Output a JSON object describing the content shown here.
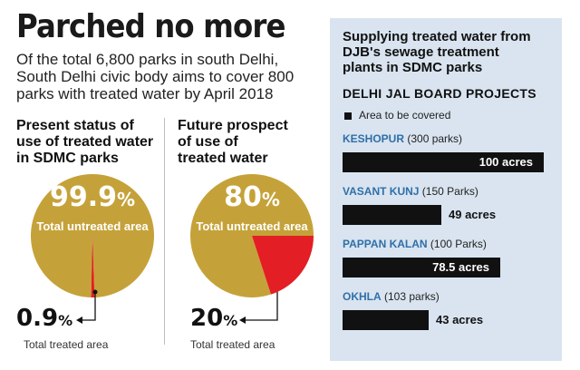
{
  "headline": "Parched no more",
  "deck": [
    "Of the total 6,800 parks in south Delhi,",
    "South Delhi civic body aims to cover 800",
    "parks with treated water by April 2018"
  ],
  "colors": {
    "untreated": "#c5a239",
    "treated": "#e31e24",
    "bars": "#111111",
    "panel_bg": "#d9e4f0",
    "project_name": "#2f6fa8"
  },
  "left_chart": {
    "title_lines": [
      "Present status of",
      "use of treated water",
      "in SDMC parks"
    ],
    "untreated_pct": "99.9",
    "pct_sign": "%",
    "untreated_label": "Total untreated area",
    "treated_pct": "0.9",
    "treated_sign": "%",
    "treated_label": "Total treated area"
  },
  "right_chart": {
    "title_lines": [
      "Future prospect",
      "of use of",
      "treated water"
    ],
    "untreated_pct": "80",
    "pct_sign": "%",
    "untreated_label": "Total untreated area",
    "treated_pct": "20",
    "treated_sign": "%",
    "treated_label": "Total treated area"
  },
  "panel": {
    "title_lines": [
      "Supplying treated water from",
      "DJB's sewage treatment",
      "plants in SDMC parks"
    ],
    "subtitle": "DELHI JAL BOARD PROJECTS",
    "legend": "Area to be covered",
    "projects": [
      {
        "name": "KESHOPUR",
        "parks": " (300 parks)",
        "label": "100 acres"
      },
      {
        "name": "VASANT KUNJ",
        "parks": " (150 Parks)",
        "label": "49 acres"
      },
      {
        "name": "PAPPAN KALAN",
        "parks": " (100 Parks)",
        "label": "78.5 acres"
      },
      {
        "name": "OKHLA",
        "parks": " (103 parks)",
        "label": "43 acres"
      }
    ]
  },
  "chart_data": [
    {
      "type": "pie",
      "title": "Present status of use of treated water in SDMC parks",
      "slices": [
        {
          "label": "Total untreated area",
          "value": 99.9
        },
        {
          "label": "Total treated area",
          "value": 0.9
        }
      ]
    },
    {
      "type": "pie",
      "title": "Future prospect of use of treated water",
      "slices": [
        {
          "label": "Total untreated area",
          "value": 80
        },
        {
          "label": "Total treated area",
          "value": 20
        }
      ]
    },
    {
      "type": "bar",
      "orientation": "horizontal",
      "title": "Supplying treated water from DJB's sewage treatment plants in SDMC parks",
      "subtitle": "DELHI JAL BOARD PROJECTS",
      "categories": [
        "KESHOPUR (300 parks)",
        "VASANT KUNJ (150 Parks)",
        "PAPPAN KALAN (100 Parks)",
        "OKHLA (103 parks)"
      ],
      "series": [
        {
          "name": "Area to be covered",
          "values": [
            100,
            49,
            78.5,
            43
          ]
        }
      ],
      "units": "acres"
    }
  ]
}
